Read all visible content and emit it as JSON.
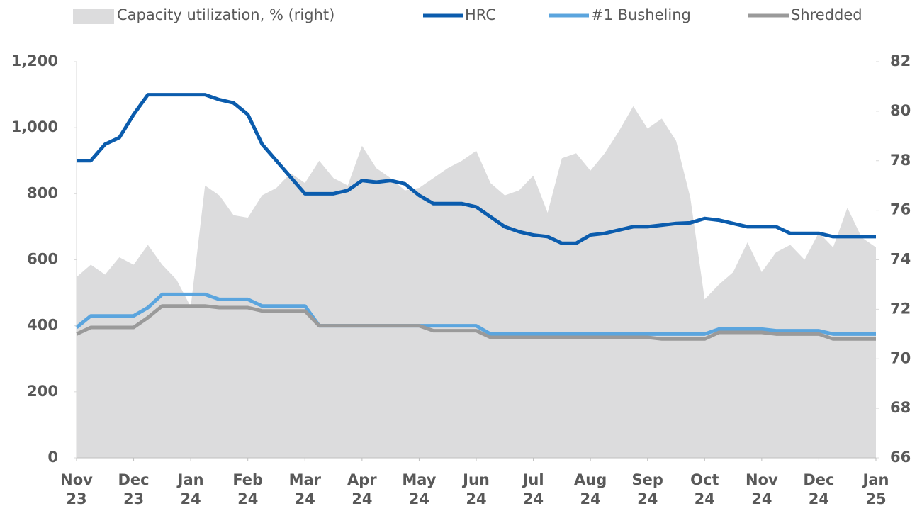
{
  "chart_data": {
    "type": "line",
    "x": [
      0,
      0.25,
      0.5,
      0.75,
      1,
      1.25,
      1.5,
      1.75,
      2,
      2.25,
      2.5,
      2.75,
      3,
      3.25,
      3.5,
      3.75,
      4,
      4.25,
      4.5,
      4.75,
      5,
      5.25,
      5.5,
      5.75,
      6,
      6.25,
      6.5,
      6.75,
      7,
      7.25,
      7.5,
      7.75,
      8,
      8.25,
      8.5,
      8.75,
      9,
      9.25,
      9.5,
      9.75,
      10,
      10.25,
      10.5,
      10.75,
      11,
      11.25,
      11.5,
      11.75,
      12,
      12.25,
      12.5,
      12.75,
      13,
      13.25,
      13.5,
      13.75,
      14
    ],
    "xlim": [
      0,
      14
    ],
    "xticks": [
      {
        "value": 0,
        "label": "Nov 23"
      },
      {
        "value": 1,
        "label": "Dec 23"
      },
      {
        "value": 2,
        "label": "Jan 24"
      },
      {
        "value": 3,
        "label": "Feb 24"
      },
      {
        "value": 4,
        "label": "Mar 24"
      },
      {
        "value": 5,
        "label": "Apr 24"
      },
      {
        "value": 6,
        "label": "May 24"
      },
      {
        "value": 7,
        "label": "Jun 24"
      },
      {
        "value": 8,
        "label": "Jul 24"
      },
      {
        "value": 9,
        "label": "Aug 24"
      },
      {
        "value": 10,
        "label": "Sep 24"
      },
      {
        "value": 11,
        "label": "Oct 24"
      },
      {
        "value": 12,
        "label": "Nov 24"
      },
      {
        "value": 13,
        "label": "Dec 24"
      },
      {
        "value": 14,
        "label": "Jan 25"
      }
    ],
    "ylim": [
      0,
      1200
    ],
    "yticks": [
      0,
      200,
      400,
      600,
      800,
      {
        "value": 1000,
        "label": "1,000"
      },
      {
        "value": 1200,
        "label": "1,200"
      }
    ],
    "y2lim": [
      66,
      82
    ],
    "y2ticks": [
      66,
      68,
      70,
      72,
      74,
      76,
      78,
      80,
      82
    ],
    "series": [
      {
        "name": "Capacity utilization, % (right)",
        "type": "area",
        "axis": "y2",
        "color": "#dcdcdd",
        "values": [
          73.3,
          73.8,
          73.4,
          74.1,
          73.8,
          74.6,
          73.8,
          73.2,
          72.1,
          77.0,
          76.6,
          75.8,
          75.7,
          76.6,
          76.9,
          77.5,
          77.1,
          78.0,
          77.3,
          77.0,
          78.6,
          77.7,
          77.3,
          76.8,
          76.9,
          77.3,
          77.7,
          78.0,
          78.4,
          77.1,
          76.6,
          76.8,
          77.4,
          75.9,
          78.1,
          78.3,
          77.6,
          78.3,
          79.2,
          80.2,
          79.3,
          79.7,
          78.8,
          76.5,
          72.4,
          73.0,
          73.5,
          74.7,
          73.5,
          74.3,
          74.6,
          74.0,
          75.1,
          74.5,
          76.1,
          74.9,
          74.5
        ]
      },
      {
        "name": "HRC",
        "color": "#0b5cad",
        "values": [
          900,
          900,
          950,
          970,
          1040,
          1100,
          1100,
          1100,
          1100,
          1100,
          1085,
          1075,
          1040,
          950,
          900,
          850,
          800,
          800,
          800,
          810,
          840,
          835,
          840,
          830,
          795,
          770,
          770,
          770,
          760,
          730,
          700,
          685,
          675,
          670,
          650,
          650,
          675,
          680,
          690,
          700,
          700,
          705,
          710,
          712,
          725,
          720,
          710,
          700,
          700,
          700,
          680,
          680,
          680,
          670,
          670,
          670,
          670
        ]
      },
      {
        "name": "#1 Busheling",
        "color": "#5ba5de",
        "values": [
          395,
          430,
          430,
          430,
          430,
          455,
          495,
          495,
          495,
          495,
          480,
          480,
          480,
          460,
          460,
          460,
          460,
          400,
          400,
          400,
          400,
          400,
          400,
          400,
          400,
          400,
          400,
          400,
          400,
          375,
          375,
          375,
          375,
          375,
          375,
          375,
          375,
          375,
          375,
          375,
          375,
          375,
          375,
          375,
          375,
          390,
          390,
          390,
          390,
          385,
          385,
          385,
          385,
          375,
          375,
          375,
          375
        ]
      },
      {
        "name": "Shredded",
        "color": "#9a9a9a",
        "values": [
          375,
          395,
          395,
          395,
          395,
          425,
          460,
          460,
          460,
          460,
          455,
          455,
          455,
          445,
          445,
          445,
          445,
          400,
          400,
          400,
          400,
          400,
          400,
          400,
          400,
          385,
          385,
          385,
          385,
          365,
          365,
          365,
          365,
          365,
          365,
          365,
          365,
          365,
          365,
          365,
          365,
          360,
          360,
          360,
          360,
          380,
          380,
          380,
          380,
          375,
          375,
          375,
          375,
          360,
          360,
          360,
          360
        ]
      }
    ]
  }
}
